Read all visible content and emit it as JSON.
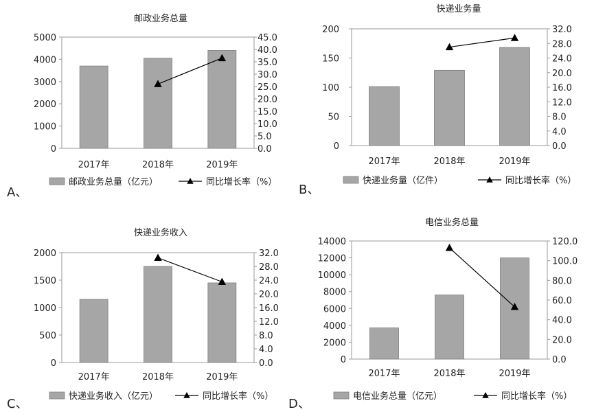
{
  "chart_data": [
    {
      "panel_label": "A、",
      "type": "bar",
      "title": "邮政业务总量",
      "categories": [
        "2017年",
        "2018年",
        "2019年"
      ],
      "series": [
        {
          "name": "邮政业务总量（亿元）",
          "kind": "bar",
          "axis": "left",
          "values": [
            3700,
            4050,
            4400
          ],
          "color": "#a6a6a6"
        },
        {
          "name": "同比增长率（%）",
          "kind": "line",
          "axis": "right",
          "values": [
            null,
            26.0,
            36.5
          ],
          "color": "#000000"
        }
      ],
      "ylim_left": [
        0,
        5000
      ],
      "yticks_left": [
        "0",
        "1000",
        "2000",
        "3000",
        "4000",
        "5000"
      ],
      "ylim_right": [
        0,
        45
      ],
      "yticks_right": [
        "0.0",
        "5.0",
        "10.0",
        "15.0",
        "20.0",
        "25.0",
        "30.0",
        "35.0",
        "40.0",
        "45.0"
      ],
      "legend": "bottom"
    },
    {
      "panel_label": "B、",
      "type": "bar",
      "title": "快递业务量",
      "categories": [
        "2017年",
        "2018年",
        "2019年"
      ],
      "series": [
        {
          "name": "快递业务量（亿件）",
          "kind": "bar",
          "axis": "left",
          "values": [
            101,
            129,
            168
          ],
          "color": "#a6a6a6"
        },
        {
          "name": "同比增长率（%）",
          "kind": "line",
          "axis": "right",
          "values": [
            null,
            27.0,
            29.5
          ],
          "color": "#000000"
        }
      ],
      "ylim_left": [
        0,
        200
      ],
      "yticks_left": [
        "0",
        "50",
        "100",
        "150",
        "200"
      ],
      "ylim_right": [
        0,
        32
      ],
      "yticks_right": [
        "0.0",
        "4.0",
        "8.0",
        "12.0",
        "16.0",
        "20.0",
        "24.0",
        "28.0",
        "32.0"
      ],
      "legend": "bottom"
    },
    {
      "panel_label": "C、",
      "type": "bar",
      "title": "快递业务收入",
      "categories": [
        "2017年",
        "2018年",
        "2019年"
      ],
      "series": [
        {
          "name": "快递业务收入（亿元）",
          "kind": "bar",
          "axis": "left",
          "values": [
            1150,
            1750,
            1450
          ],
          "color": "#a6a6a6"
        },
        {
          "name": "同比增长率（%）",
          "kind": "line",
          "axis": "right",
          "values": [
            null,
            30.5,
            23.5
          ],
          "color": "#000000"
        }
      ],
      "ylim_left": [
        0,
        2000
      ],
      "yticks_left": [
        "0",
        "500",
        "1000",
        "1500",
        "2000"
      ],
      "ylim_right": [
        0,
        32
      ],
      "yticks_right": [
        "0.0",
        "4.0",
        "8.0",
        "12.0",
        "16.0",
        "20.0",
        "24.0",
        "28.0",
        "32.0"
      ],
      "legend": "bottom"
    },
    {
      "panel_label": "D、",
      "type": "bar",
      "title": "电信业务总量",
      "categories": [
        "2017年",
        "2018年",
        "2019年"
      ],
      "series": [
        {
          "name": "电信业务总量（亿元）",
          "kind": "bar",
          "axis": "left",
          "values": [
            3700,
            7600,
            12000
          ],
          "color": "#a6a6a6"
        },
        {
          "name": "同比增长率（%）",
          "kind": "line",
          "axis": "right",
          "values": [
            null,
            113.0,
            53.0
          ],
          "color": "#000000"
        }
      ],
      "ylim_left": [
        0,
        14000
      ],
      "yticks_left": [
        "0",
        "2000",
        "4000",
        "6000",
        "8000",
        "10000",
        "12000",
        "14000"
      ],
      "ylim_right": [
        0,
        120
      ],
      "yticks_right": [
        "0.0",
        "20.0",
        "40.0",
        "60.0",
        "80.0",
        "100.0",
        "120.0"
      ],
      "legend": "bottom"
    }
  ]
}
